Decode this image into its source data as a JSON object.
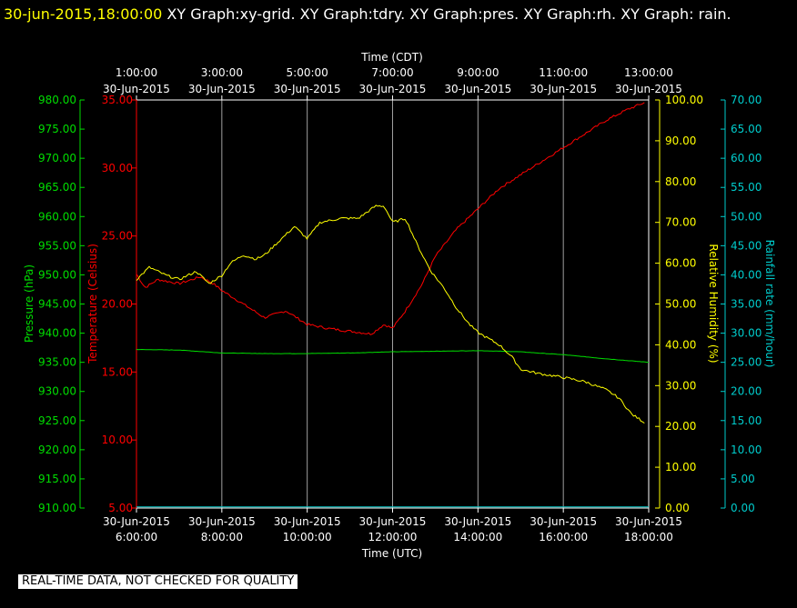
{
  "header": {
    "timestamp": "30-jun-2015,18:00:00",
    "title": " XY Graph:xy-grid.  XY Graph:tdry.  XY Graph:pres.  XY Graph:rh.  XY Graph: rain."
  },
  "notice": "REAL-TIME DATA, NOT CHECKED FOR QUALITY",
  "colors": {
    "pressure": "#00dd00",
    "temperature": "#ff0000",
    "humidity": "#ffff00",
    "rainfall": "#00cccc",
    "grid": "#a0a0a0",
    "frame": "#ffffff",
    "background": "#000000"
  },
  "chart_data": {
    "type": "line",
    "top_axis": {
      "label": "Time (CDT)",
      "ticks": [
        {
          "time": "1:00:00",
          "date": "30-Jun-2015"
        },
        {
          "time": "3:00:00",
          "date": "30-Jun-2015"
        },
        {
          "time": "5:00:00",
          "date": "30-Jun-2015"
        },
        {
          "time": "7:00:00",
          "date": "30-Jun-2015"
        },
        {
          "time": "9:00:00",
          "date": "30-Jun-2015"
        },
        {
          "time": "11:00:00",
          "date": "30-Jun-2015"
        },
        {
          "time": "13:00:00",
          "date": "30-Jun-2015"
        }
      ]
    },
    "bottom_axis": {
      "label": "Time (UTC)",
      "ticks": [
        {
          "date": "30-Jun-2015",
          "time": "6:00:00"
        },
        {
          "date": "30-Jun-2015",
          "time": "8:00:00"
        },
        {
          "date": "30-Jun-2015",
          "time": "10:00:00"
        },
        {
          "date": "30-Jun-2015",
          "time": "12:00:00"
        },
        {
          "date": "30-Jun-2015",
          "time": "14:00:00"
        },
        {
          "date": "30-Jun-2015",
          "time": "16:00:00"
        },
        {
          "date": "30-Jun-2015",
          "time": "18:00:00"
        }
      ]
    },
    "x_range_utc_hours": [
      6,
      18
    ],
    "pressure_axis": {
      "label": "Pressure (hPa)",
      "range": [
        910,
        980
      ],
      "ticks": [
        "980.00",
        "975.00",
        "970.00",
        "965.00",
        "960.00",
        "955.00",
        "950.00",
        "945.00",
        "940.00",
        "935.00",
        "930.00",
        "925.00",
        "920.00",
        "915.00",
        "910.00"
      ]
    },
    "temperature_axis": {
      "label": "Temperature (Celsius)",
      "range": [
        5,
        35
      ],
      "ticks": [
        "35.00",
        "30.00",
        "25.00",
        "20.00",
        "15.00",
        "10.00",
        "5.00"
      ]
    },
    "humidity_axis": {
      "label": "Relative Humidity (%)",
      "range": [
        0,
        100
      ],
      "ticks": [
        "100.00",
        "90.00",
        "80.00",
        "70.00",
        "60.00",
        "50.00",
        "40.00",
        "30.00",
        "20.00",
        "10.00",
        "0.00"
      ]
    },
    "rainfall_axis": {
      "label": "Rainfall rate (mm/hour)",
      "range": [
        0,
        70
      ],
      "ticks": [
        "70.00",
        "65.00",
        "60.00",
        "55.00",
        "50.00",
        "45.00",
        "40.00",
        "35.00",
        "30.00",
        "25.00",
        "20.00",
        "15.00",
        "10.00",
        "5.00",
        "0.00"
      ]
    },
    "series": [
      {
        "name": "tdry",
        "axis": "temperature_axis",
        "x": [
          6.0,
          6.2,
          6.5,
          7.0,
          7.5,
          7.8,
          8.0,
          8.5,
          9.0,
          9.5,
          10.0,
          10.5,
          11.0,
          11.5,
          11.8,
          12.0,
          12.3,
          12.7,
          13.0,
          13.5,
          14.0,
          14.5,
          15.0,
          15.5,
          16.0,
          16.5,
          17.0,
          17.5,
          17.9
        ],
        "y": [
          22.2,
          21.2,
          21.8,
          21.5,
          22.0,
          21.5,
          21.0,
          20.0,
          19.0,
          19.5,
          18.5,
          18.2,
          18.0,
          17.8,
          18.5,
          18.2,
          19.5,
          21.5,
          23.5,
          25.5,
          27.0,
          28.5,
          29.5,
          30.5,
          31.5,
          32.5,
          33.5,
          34.3,
          34.8
        ]
      },
      {
        "name": "pres",
        "axis": "pressure_axis",
        "x": [
          6.0,
          7.0,
          8.0,
          9.0,
          10.0,
          11.0,
          12.0,
          13.0,
          14.0,
          14.5,
          15.0,
          16.0,
          17.0,
          18.0
        ],
        "y": [
          937.2,
          937.1,
          936.6,
          936.5,
          936.5,
          936.6,
          936.8,
          936.9,
          937.0,
          936.9,
          936.8,
          936.3,
          935.6,
          935.0
        ]
      },
      {
        "name": "rh",
        "axis": "humidity_axis",
        "x": [
          6.0,
          6.3,
          6.7,
          7.0,
          7.4,
          7.7,
          8.0,
          8.2,
          8.5,
          8.8,
          9.0,
          9.4,
          9.7,
          10.0,
          10.3,
          10.8,
          11.2,
          11.6,
          11.8,
          12.0,
          12.3,
          12.6,
          12.9,
          13.2,
          13.5,
          13.8,
          14.0,
          14.5,
          14.8,
          15.0,
          15.4,
          16.0,
          16.5,
          17.0,
          17.3,
          17.6,
          17.9
        ],
        "y": [
          56,
          59,
          57,
          56,
          58,
          55,
          57,
          60,
          62,
          61,
          62,
          66,
          69,
          66,
          70,
          71,
          71,
          74,
          74,
          70,
          71,
          64,
          58,
          54,
          49,
          45,
          43,
          40,
          37,
          34,
          33,
          32,
          31,
          29,
          27,
          23,
          21
        ]
      },
      {
        "name": "rain",
        "axis": "rainfall_axis",
        "x": [
          6.0,
          18.0
        ],
        "y": [
          0.2,
          0.2
        ]
      }
    ]
  }
}
